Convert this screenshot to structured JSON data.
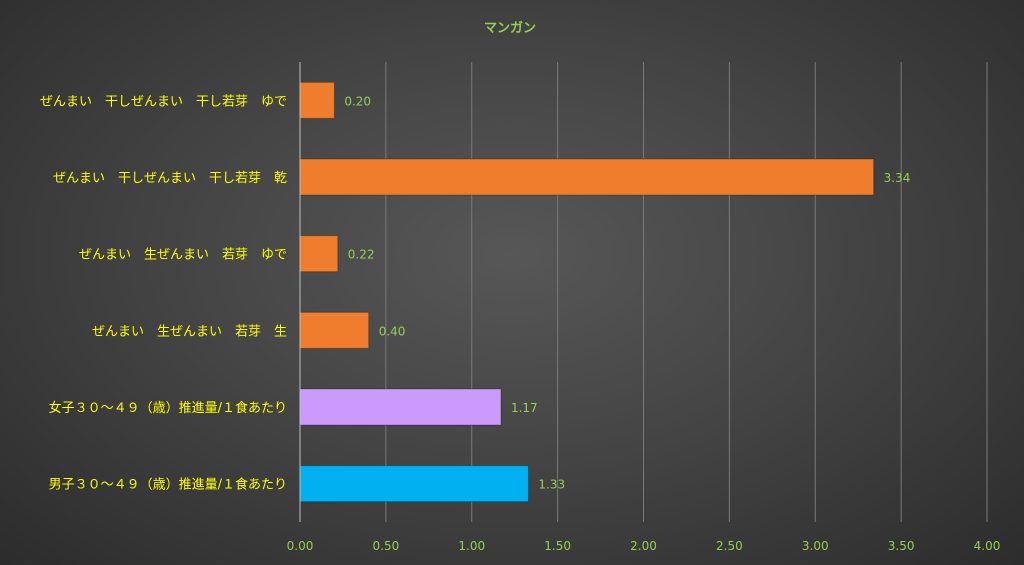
{
  "chart_data": {
    "type": "bar",
    "orientation": "horizontal",
    "title": "マンガン",
    "categories": [
      "ぜんまい　干しぜんまい　干し若芽　ゆで",
      "ぜんまい　干しぜんまい　干し若芽　乾",
      "ぜんまい　生ぜんまい　若芽　ゆで",
      "ぜんまい　生ぜんまい　若芽　生",
      "女子３０～４９（歳）推進量/１食あたり",
      "男子３０～４９（歳）推進量/１食あたり"
    ],
    "values": [
      0.2,
      3.34,
      0.22,
      0.4,
      1.17,
      1.33
    ],
    "value_labels": [
      "0.20",
      "3.34",
      "0.22",
      "0.40",
      "1.17",
      "1.33"
    ],
    "bar_colors": [
      "#f07d2e",
      "#f07d2e",
      "#f07d2e",
      "#f07d2e",
      "#cc99ff",
      "#00b0f0"
    ],
    "xlim": [
      0,
      4
    ],
    "x_ticks": [
      "0.00",
      "0.50",
      "1.00",
      "1.50",
      "2.00",
      "2.50",
      "3.00",
      "3.50",
      "4.00"
    ],
    "grid": true,
    "legend": "none"
  },
  "colors": {
    "title": "#92d050",
    "category_label": "#ffff00",
    "tick_label": "#92d050",
    "data_label": "#92d050",
    "gridline": "#7a7a7a"
  }
}
